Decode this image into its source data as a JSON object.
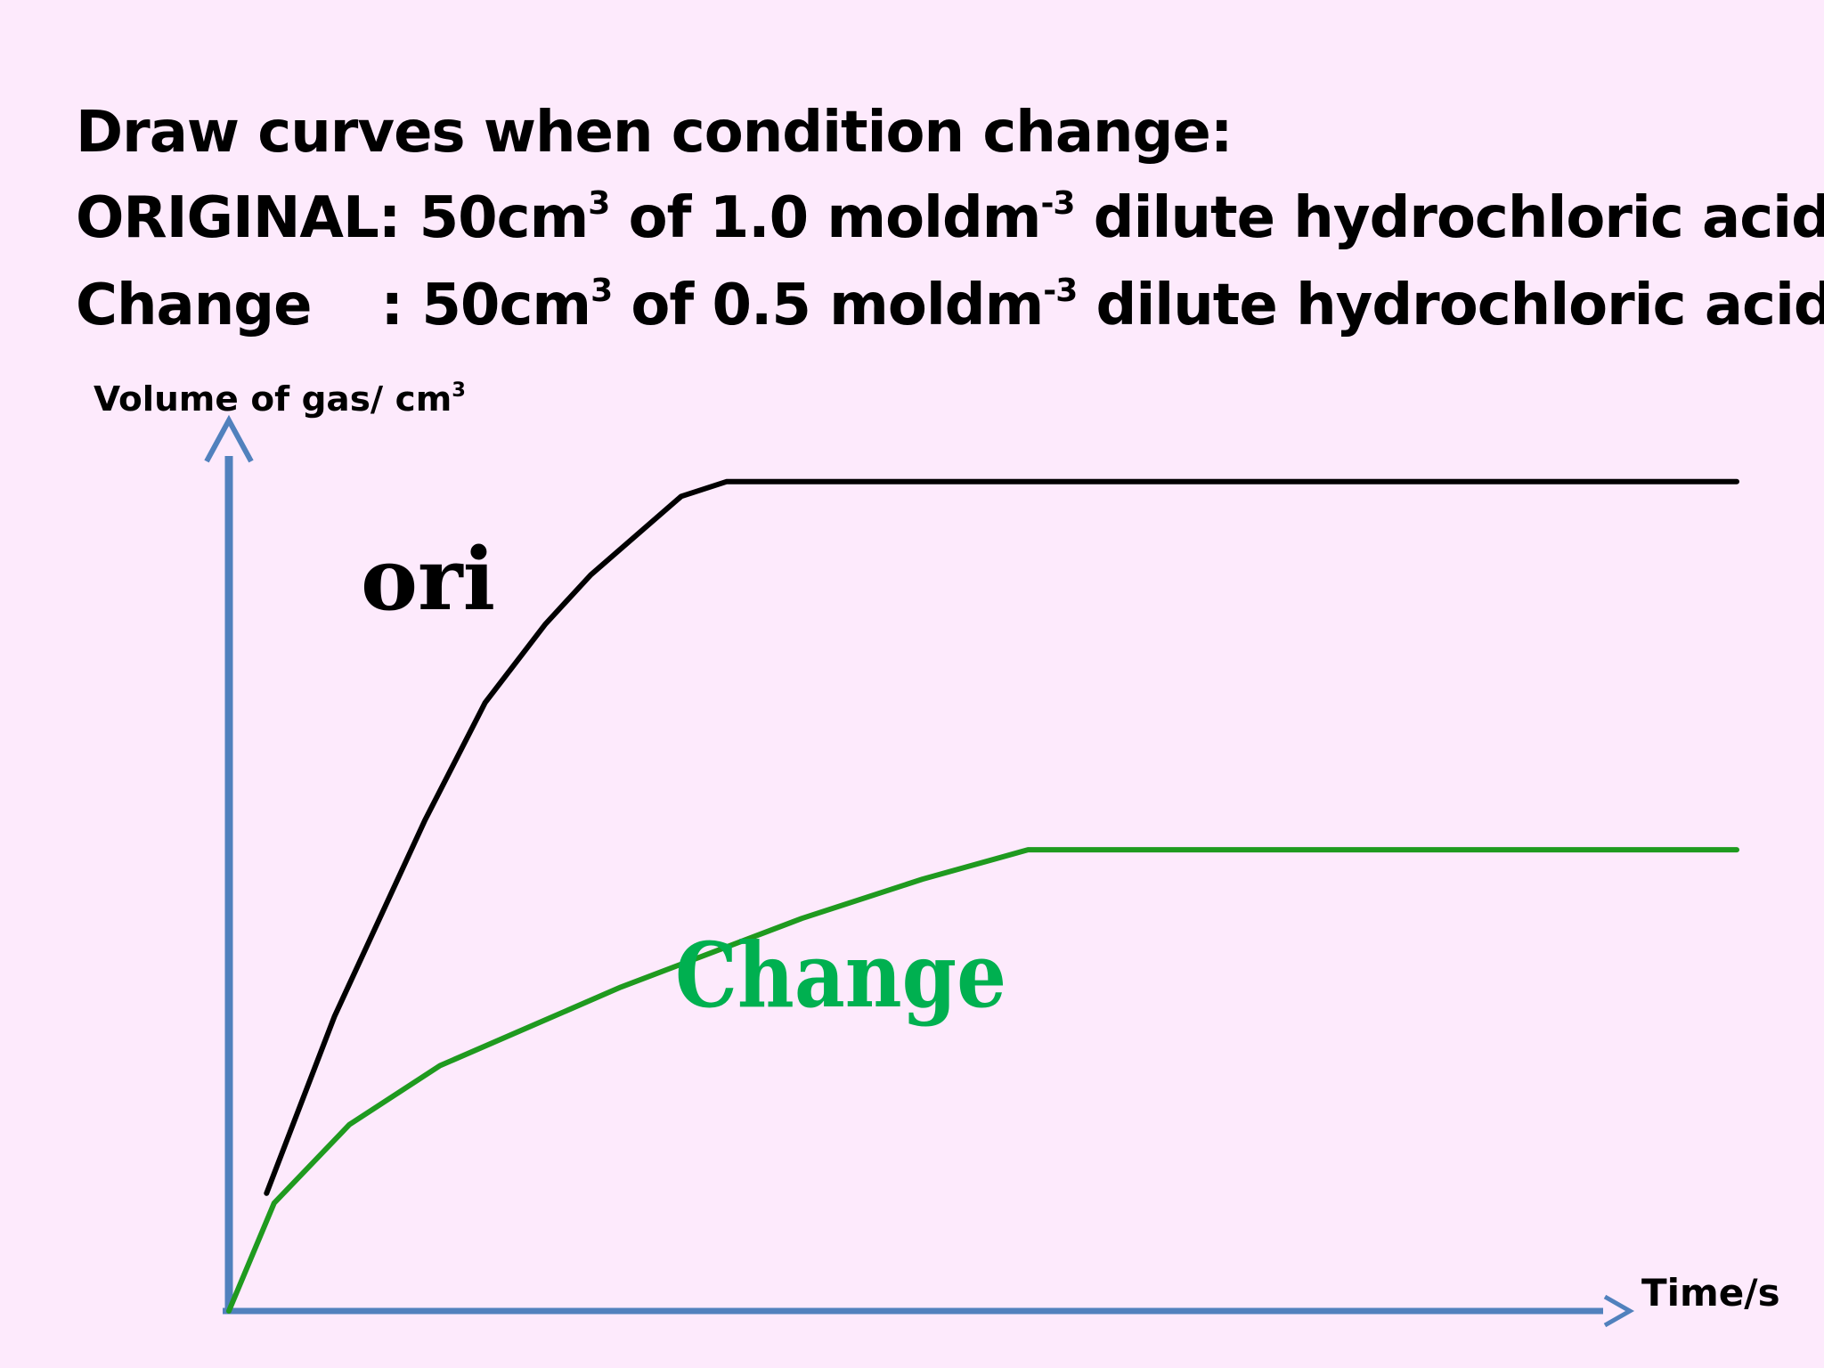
{
  "heading": {
    "line1": "Draw curves when condition change:",
    "line2": {
      "prefix": "ORIGINAL: 50cm",
      "sup1": "3",
      "mid": " of 1.0 moldm",
      "sup2": "-3",
      "suffix": " dilute hydrochloric acid"
    },
    "line3": {
      "label": "Change",
      "prefix": ": 50cm",
      "sup1": "3",
      "mid": " of 0.5 moldm",
      "sup2": "-3",
      "suffix": " dilute hydrochloric acid"
    }
  },
  "chart_data": {
    "type": "line",
    "xlabel": "Time/s",
    "ylabel": "Volume of gas/ cm",
    "ylabel_sup": "3",
    "xlim": [
      0,
      100
    ],
    "ylim": [
      0,
      100
    ],
    "ticks": "none",
    "grid": false,
    "series": [
      {
        "name": "ori",
        "color": "#000000",
        "points": [
          [
            2.5,
            12
          ],
          [
            7,
            30
          ],
          [
            13,
            50
          ],
          [
            17,
            62
          ],
          [
            21,
            70
          ],
          [
            24,
            75
          ],
          [
            27,
            79
          ],
          [
            30,
            83
          ],
          [
            33,
            84.5
          ],
          [
            100,
            84.5
          ]
        ]
      },
      {
        "name": "Change",
        "color": "#1f9a1f",
        "points": [
          [
            0,
            0
          ],
          [
            3,
            11
          ],
          [
            8,
            19
          ],
          [
            14,
            25
          ],
          [
            26,
            33
          ],
          [
            38,
            40
          ],
          [
            46,
            44
          ],
          [
            53,
            47
          ],
          [
            100,
            47
          ]
        ]
      }
    ],
    "colors": {
      "background": "#fdeafc",
      "axis": "#5181bd",
      "label_change": "#00b050"
    }
  }
}
